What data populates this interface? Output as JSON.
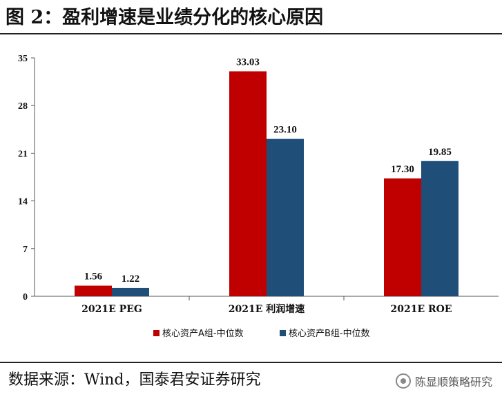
{
  "header": {
    "title": "图 2：盈利增速是业绩分化的核心原因"
  },
  "chart_data": {
    "type": "bar",
    "categories": [
      "2021E PEG",
      "2021E 利润增速",
      "2021E ROE"
    ],
    "series": [
      {
        "name": "核心资产A组-中位数",
        "values": [
          1.56,
          33.03,
          17.3
        ],
        "labels": [
          "1.56",
          "33.03",
          "17.30"
        ],
        "color": "#C00000"
      },
      {
        "name": "核心资产B组-中位数",
        "values": [
          1.22,
          23.1,
          19.85
        ],
        "labels": [
          "1.22",
          "23.10",
          "19.85"
        ],
        "color": "#1F4E79"
      }
    ],
    "ylim": [
      0,
      35
    ],
    "yticks": [
      "0",
      "7",
      "14",
      "21",
      "28",
      "35"
    ],
    "legend_position": "bottom",
    "grid": false
  },
  "footer": {
    "source": "数据来源：Wind，国泰君安证券研究",
    "watermark": "陈显顺策略研究"
  }
}
